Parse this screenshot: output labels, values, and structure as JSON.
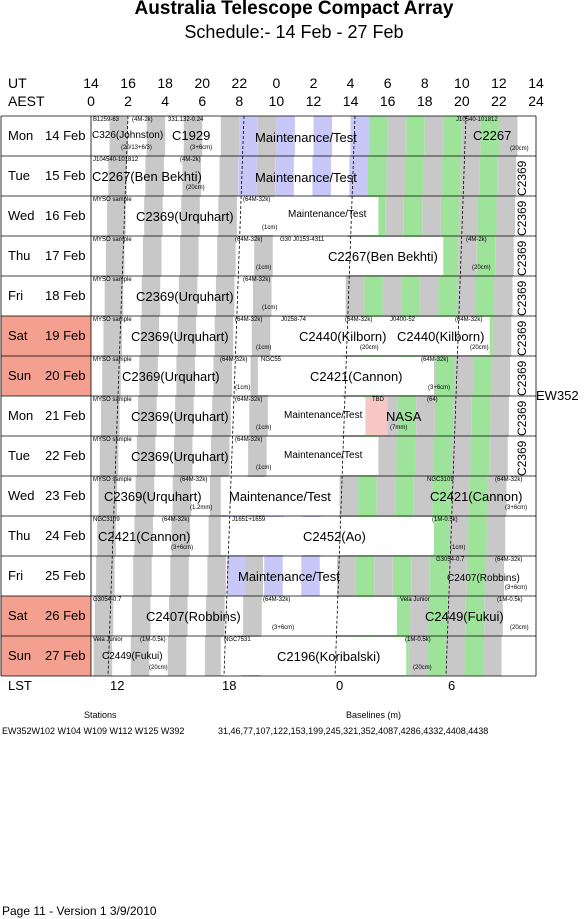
{
  "title": "Australia Telescope Compact Array",
  "subtitle": "Schedule:- 14 Feb - 27 Feb",
  "axis": {
    "ut_label": "UT",
    "aest_label": "AEST",
    "ut_ticks": [
      "14",
      "16",
      "18",
      "20",
      "22",
      "0",
      "2",
      "4",
      "6",
      "8",
      "10",
      "12",
      "14"
    ],
    "aest_ticks": [
      "0",
      "2",
      "4",
      "6",
      "8",
      "10",
      "12",
      "14",
      "16",
      "18",
      "20",
      "22",
      "24"
    ],
    "lst_label": "LST",
    "lst_ticks": [
      "12",
      "18",
      "0",
      "6"
    ]
  },
  "days": [
    {
      "name": "Mon",
      "date": "14 Feb",
      "weekend": false
    },
    {
      "name": "Tue",
      "date": "15 Feb",
      "weekend": false
    },
    {
      "name": "Wed",
      "date": "16 Feb",
      "weekend": false
    },
    {
      "name": "Thu",
      "date": "17 Feb",
      "weekend": false
    },
    {
      "name": "Fri",
      "date": "18 Feb",
      "weekend": false
    },
    {
      "name": "Sat",
      "date": "19 Feb",
      "weekend": true
    },
    {
      "name": "Sun",
      "date": "20 Feb",
      "weekend": true
    },
    {
      "name": "Mon",
      "date": "21 Feb",
      "weekend": false
    },
    {
      "name": "Tue",
      "date": "22 Feb",
      "weekend": false
    },
    {
      "name": "Wed",
      "date": "23 Feb",
      "weekend": false
    },
    {
      "name": "Thu",
      "date": "24 Feb",
      "weekend": false
    },
    {
      "name": "Fri",
      "date": "25 Feb",
      "weekend": false
    },
    {
      "name": "Sat",
      "date": "26 Feb",
      "weekend": true
    },
    {
      "name": "Sun",
      "date": "27 Feb",
      "weekend": true
    }
  ],
  "config": "EW352",
  "projects": {
    "r0": [
      "B1259-63",
      "(4M-2k)",
      "331.132-0.24",
      "C326(Johnston)",
      "(20/13+6/3)",
      "C1929",
      "(3+6cm)",
      "Maintenance/Test",
      "J10540-101812",
      "C2267",
      "(20cm)"
    ],
    "r1": [
      "J104540-101812",
      "(4M-2k)",
      "C2267(Ben Bekhti)",
      "(20cm)",
      "Maintenance/Test",
      "C2369"
    ],
    "r2": [
      "MYSO sample",
      "(64M-32k)",
      "C2369(Urquhart)",
      "(1cm)",
      "Maintenance/Test",
      "C2369"
    ],
    "r3": [
      "MYSO sample",
      "(64M-32k)",
      "G30 J0153-4311",
      "C2267(Ben Bekhti)",
      "(1cm)",
      "(4M-2k)",
      "(20cm)",
      "C2369"
    ],
    "r4": [
      "MYSO sample",
      "(64M-32k)",
      "C2369(Urquhart)",
      "(1cm)",
      "C2369"
    ],
    "r5": [
      "MYSO sample",
      "(64M-32k)",
      "J0258-74",
      "(64M-32k)",
      "J0400-52",
      "(64M-32k)",
      "C2369(Urquhart)",
      "(1cm)",
      "C2440(Kilborn)",
      "(20cm)",
      "C2440(Kilborn)",
      "(20cm)",
      "C2369"
    ],
    "r6": [
      "MYSO sample",
      "(64M-32k)",
      "NGC55",
      "(64M-32k)",
      "C2369(Urquhart)",
      "(1cm)",
      "C2421(Cannon)",
      "(3+6cm)",
      "C2369"
    ],
    "r7": [
      "MYSO sample",
      "(64M-32k)",
      "TBD",
      "(64)",
      "C2369(Urquhart)",
      "(1cm)",
      "Maintenance/Test",
      "NASA",
      "(7mm)",
      "C2369"
    ],
    "r8": [
      "MYSO sample",
      "(64M-32k)",
      "C2369(Urquhart)",
      "(1cm)",
      "Maintenance/Test",
      "C2369"
    ],
    "r9": [
      "MYSO sample",
      "(64M-32k)",
      "NGC3109",
      "(64M-32k)",
      "C2369(Urquhart)",
      "(1.2mm)",
      "Maintenance/Test",
      "C2421(Cannon)",
      "(3+6cm)"
    ],
    "r10": [
      "NGC3109",
      "(64M-32k)",
      "J1651+1659",
      "(1M-0.5k)",
      "C2421(Cannon)",
      "(3+6cm)",
      "C2452(Ao)",
      "(1cm)"
    ],
    "r11": [
      "Maintenance/Test",
      "G3054-0.7",
      "(64M-32k)",
      "C2407(Robbins)",
      "(3+6cm)"
    ],
    "r12": [
      "G3054-0.7",
      "(64M-32k)",
      "Vela Junior",
      "(1M-0.5k)",
      "C2407(Robbins)",
      "(3+6cm)",
      "C2449(Fukui)",
      "(20cm)"
    ],
    "r13": [
      "Vela Junior",
      "(1M-0.5k)",
      "NGC7531",
      "(1M-0.5k)",
      "C2449(Fukui)",
      "(20cm)",
      "C2196(Koribalski)",
      "(20cm)"
    ]
  },
  "stations_label": "Stations",
  "stations": "EW352W102 W104 W109 W112 W125 W392",
  "baselines_label": "Baselines (m)",
  "baselines": "31,46,77,107,122,153,199,245,321,352,4087,4286,4332,4408,4438",
  "footer": "Page 11 - Version 1  3/9/2010",
  "colors": {
    "weekend": "#f4a090",
    "grey": "#c8c8c8",
    "green": "#9de39a",
    "blue": "#c8c8f8",
    "pink": "#f7c7c7"
  }
}
